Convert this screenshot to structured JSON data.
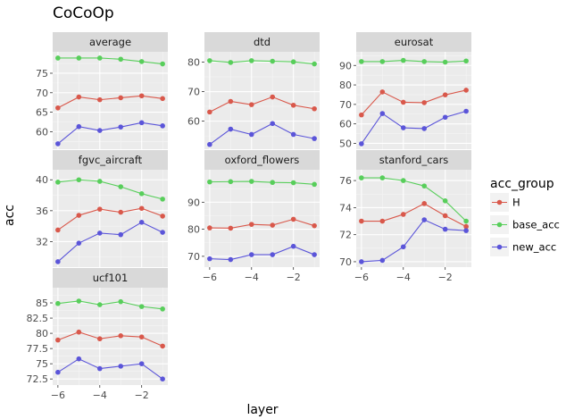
{
  "chart_data": {
    "type": "line",
    "title": "CoCoOp",
    "xlabel": "layer",
    "ylabel": "acc",
    "legend": {
      "title": "acc_group",
      "position": "right",
      "entries": [
        {
          "name": "H",
          "color": "#d9584b"
        },
        {
          "name": "base_acc",
          "color": "#58ce5b"
        },
        {
          "name": "new_acc",
          "color": "#5b55d9"
        }
      ]
    },
    "x": [
      -6,
      -5,
      -4,
      -3,
      -2,
      -1
    ],
    "x_ticks": [
      -6,
      -4,
      -2
    ],
    "x_tick_labels": [
      "−6",
      "−4",
      "−2"
    ],
    "xlim": [
      -6.25,
      -0.75
    ],
    "grid": true,
    "facets": [
      {
        "name": "average",
        "ylim": [
          55.5,
          80.5
        ],
        "y_ticks": [
          60,
          65,
          70,
          75
        ],
        "y_tick_labels": [
          "60",
          "65",
          "70",
          "75"
        ],
        "series": [
          {
            "name": "H",
            "values": [
              66.1,
              68.9,
              68.2,
              68.7,
              69.2,
              68.5
            ]
          },
          {
            "name": "base_acc",
            "values": [
              78.9,
              78.9,
              78.9,
              78.6,
              78.0,
              77.4
            ]
          },
          {
            "name": "new_acc",
            "values": [
              56.9,
              61.3,
              60.3,
              61.2,
              62.3,
              61.5
            ]
          }
        ]
      },
      {
        "name": "dtd",
        "ylim": [
          50.5,
          83.5
        ],
        "y_ticks": [
          60,
          70,
          80
        ],
        "y_tick_labels": [
          "60",
          "70",
          "80"
        ],
        "series": [
          {
            "name": "H",
            "values": [
              63.1,
              66.7,
              65.6,
              68.2,
              65.4,
              64.2
            ]
          },
          {
            "name": "base_acc",
            "values": [
              80.5,
              79.9,
              80.5,
              80.3,
              80.1,
              79.4
            ]
          },
          {
            "name": "new_acc",
            "values": [
              52.1,
              57.3,
              55.5,
              59.2,
              55.5,
              54.1
            ]
          }
        ]
      },
      {
        "name": "eurosat",
        "ylim": [
          47,
          97
        ],
        "y_ticks": [
          50,
          60,
          70,
          80,
          90
        ],
        "y_tick_labels": [
          "50",
          "60",
          "70",
          "80",
          "90"
        ],
        "series": [
          {
            "name": "H",
            "values": [
              64.6,
              76.4,
              71.1,
              70.9,
              74.9,
              77.3
            ]
          },
          {
            "name": "base_acc",
            "values": [
              92.0,
              92.0,
              92.6,
              92.0,
              91.7,
              92.3
            ]
          },
          {
            "name": "new_acc",
            "values": [
              49.8,
              65.3,
              58.0,
              57.6,
              63.4,
              66.5
            ]
          }
        ]
      },
      {
        "name": "fgvc_aircraft",
        "ylim": [
          28.7,
          41.3
        ],
        "y_ticks": [
          32,
          36,
          40
        ],
        "y_tick_labels": [
          "32",
          "36",
          "40"
        ],
        "series": [
          {
            "name": "H",
            "values": [
              33.5,
              35.4,
              36.2,
              35.8,
              36.3,
              35.3
            ]
          },
          {
            "name": "base_acc",
            "values": [
              39.7,
              40.0,
              39.8,
              39.1,
              38.2,
              37.5
            ]
          },
          {
            "name": "new_acc",
            "values": [
              29.4,
              31.8,
              33.1,
              32.9,
              34.5,
              33.2
            ]
          }
        ]
      },
      {
        "name": "oxford_flowers",
        "ylim": [
          66,
          102
        ],
        "y_ticks": [
          70,
          80,
          90
        ],
        "y_tick_labels": [
          "70",
          "80",
          "90"
        ],
        "series": [
          {
            "name": "H",
            "values": [
              80.5,
              80.4,
              81.8,
              81.5,
              83.7,
              81.3
            ]
          },
          {
            "name": "base_acc",
            "values": [
              97.5,
              97.6,
              97.7,
              97.3,
              97.2,
              96.6
            ]
          },
          {
            "name": "new_acc",
            "values": [
              69.1,
              68.8,
              70.6,
              70.6,
              73.7,
              70.6
            ]
          }
        ]
      },
      {
        "name": "stanford_cars",
        "ylim": [
          69.6,
          76.8
        ],
        "y_ticks": [
          70,
          72,
          74,
          76
        ],
        "y_tick_labels": [
          "70",
          "72",
          "74",
          "76"
        ],
        "series": [
          {
            "name": "H",
            "values": [
              73.0,
              73.0,
              73.5,
              74.3,
              73.4,
              72.6
            ]
          },
          {
            "name": "base_acc",
            "values": [
              76.2,
              76.2,
              76.0,
              75.6,
              74.5,
              73.0
            ]
          },
          {
            "name": "new_acc",
            "values": [
              70.0,
              70.1,
              71.1,
              73.1,
              72.4,
              72.3
            ]
          }
        ]
      },
      {
        "name": "ucf101",
        "ylim": [
          71.5,
          87.5
        ],
        "y_ticks": [
          72.5,
          75,
          77.5,
          80,
          82.5,
          85
        ],
        "y_tick_labels": [
          "72.5",
          "75",
          "77.5",
          "80",
          "82.5",
          "85"
        ],
        "series": [
          {
            "name": "H",
            "values": [
              78.9,
              80.2,
              79.1,
              79.6,
              79.4,
              77.9
            ]
          },
          {
            "name": "base_acc",
            "values": [
              84.9,
              85.3,
              84.7,
              85.2,
              84.4,
              84.0
            ]
          },
          {
            "name": "new_acc",
            "values": [
              73.6,
              75.8,
              74.2,
              74.6,
              75.0,
              72.5
            ]
          }
        ]
      }
    ]
  }
}
